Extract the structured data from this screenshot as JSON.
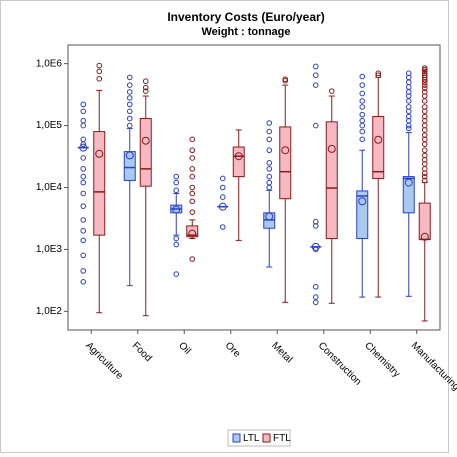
{
  "chart_data": {
    "type": "box",
    "title": "Inventory Costs (Euro/year)",
    "subtitle": "Weight : tonnage",
    "categories": [
      "Agriculture",
      "Food",
      "Oil",
      "Ore",
      "Metal",
      "Construction",
      "Chemistry",
      "Manufacturing"
    ],
    "log_scale": true,
    "ylim": [
      50,
      2000000
    ],
    "yticks": [
      {
        "value": 100,
        "label": "1,0E2"
      },
      {
        "value": 1000,
        "label": "1,0E3"
      },
      {
        "value": 10000,
        "label": "1,0E4"
      },
      {
        "value": 100000,
        "label": "1,0E5"
      },
      {
        "value": 1000000,
        "label": "1,0E6"
      }
    ],
    "series": [
      {
        "name": "LTL",
        "color": "#2a3fd1",
        "fill": "#a9c9ef",
        "min": [
          44000,
          260,
          1700,
          4900,
          520,
          1100,
          170,
          175
        ],
        "q1": [
          44000,
          13000,
          3900,
          4900,
          2200,
          1100,
          1500,
          3900
        ],
        "median": [
          44000,
          21000,
          4500,
          4900,
          3000,
          1100,
          7300,
          14000
        ],
        "q3": [
          44000,
          38000,
          5200,
          4900,
          3900,
          1100,
          8800,
          15000
        ],
        "max": [
          44000,
          90000,
          8000,
          4900,
          9000,
          1100,
          40000,
          77000
        ],
        "mean": [
          44000,
          33000,
          4400,
          4900,
          3400,
          1100,
          6000,
          12000
        ],
        "outliers": [
          [
            220000,
            170000,
            120000,
            100000,
            60000,
            50000,
            30000,
            20000,
            15000,
            12000,
            8000,
            5000,
            3000,
            2000,
            1400,
            800,
            450,
            300
          ],
          [
            600000,
            450000,
            350000,
            280000,
            220000,
            170000,
            130000,
            100000
          ],
          [
            15000,
            12000,
            9000,
            1500,
            1200,
            400
          ],
          [
            14000,
            10000,
            7000,
            2300
          ],
          [
            110000,
            80000,
            60000,
            40000,
            25000,
            20000,
            15000,
            12000,
            10000
          ],
          [
            900000,
            650000,
            450000,
            100000,
            2800,
            2400,
            1000,
            250,
            170,
            140
          ],
          [
            620000,
            450000,
            330000,
            250000,
            200000,
            150000,
            120000,
            100000,
            80000,
            60000
          ],
          [
            700000,
            600000,
            500000,
            420000,
            350000,
            300000,
            250000,
            200000,
            170000,
            140000,
            120000,
            100000,
            90000
          ]
        ]
      },
      {
        "name": "FTL",
        "color": "#8b1a1a",
        "fill": "#f6b9c2",
        "min": [
          95,
          85,
          1500,
          1400,
          140,
          135,
          170,
          70
        ],
        "q1": [
          1700,
          10500,
          1600,
          15000,
          6600,
          1500,
          14000,
          1450
        ],
        "median": [
          8500,
          20000,
          1700,
          32000,
          18000,
          9800,
          18000,
          1450
        ],
        "q3": [
          80000,
          130000,
          2400,
          45000,
          95000,
          115000,
          140000,
          5600
        ],
        "max": [
          370000,
          300000,
          3000,
          85000,
          450000,
          300000,
          600000,
          12000
        ],
        "mean": [
          35000,
          57000,
          1800,
          32000,
          40000,
          42000,
          59000,
          1600
        ],
        "outliers": [
          [
            930000,
            750000,
            570000
          ],
          [
            520000,
            410000,
            360000
          ],
          [
            60000,
            40000,
            30000,
            20000,
            15000,
            10000,
            8000,
            6000,
            4000,
            700
          ],
          [],
          [
            560000,
            530000
          ],
          [
            360000
          ],
          [
            700000,
            650000
          ],
          [
            850000,
            800000,
            750000,
            700000,
            650000,
            600000,
            550000,
            500000,
            450000,
            400000,
            350000,
            300000,
            250000,
            200000,
            170000,
            140000,
            120000,
            100000,
            85000,
            70000,
            60000,
            50000,
            40000,
            33000,
            28000,
            24000,
            20000,
            17000,
            15000,
            13000
          ]
        ]
      }
    ]
  }
}
